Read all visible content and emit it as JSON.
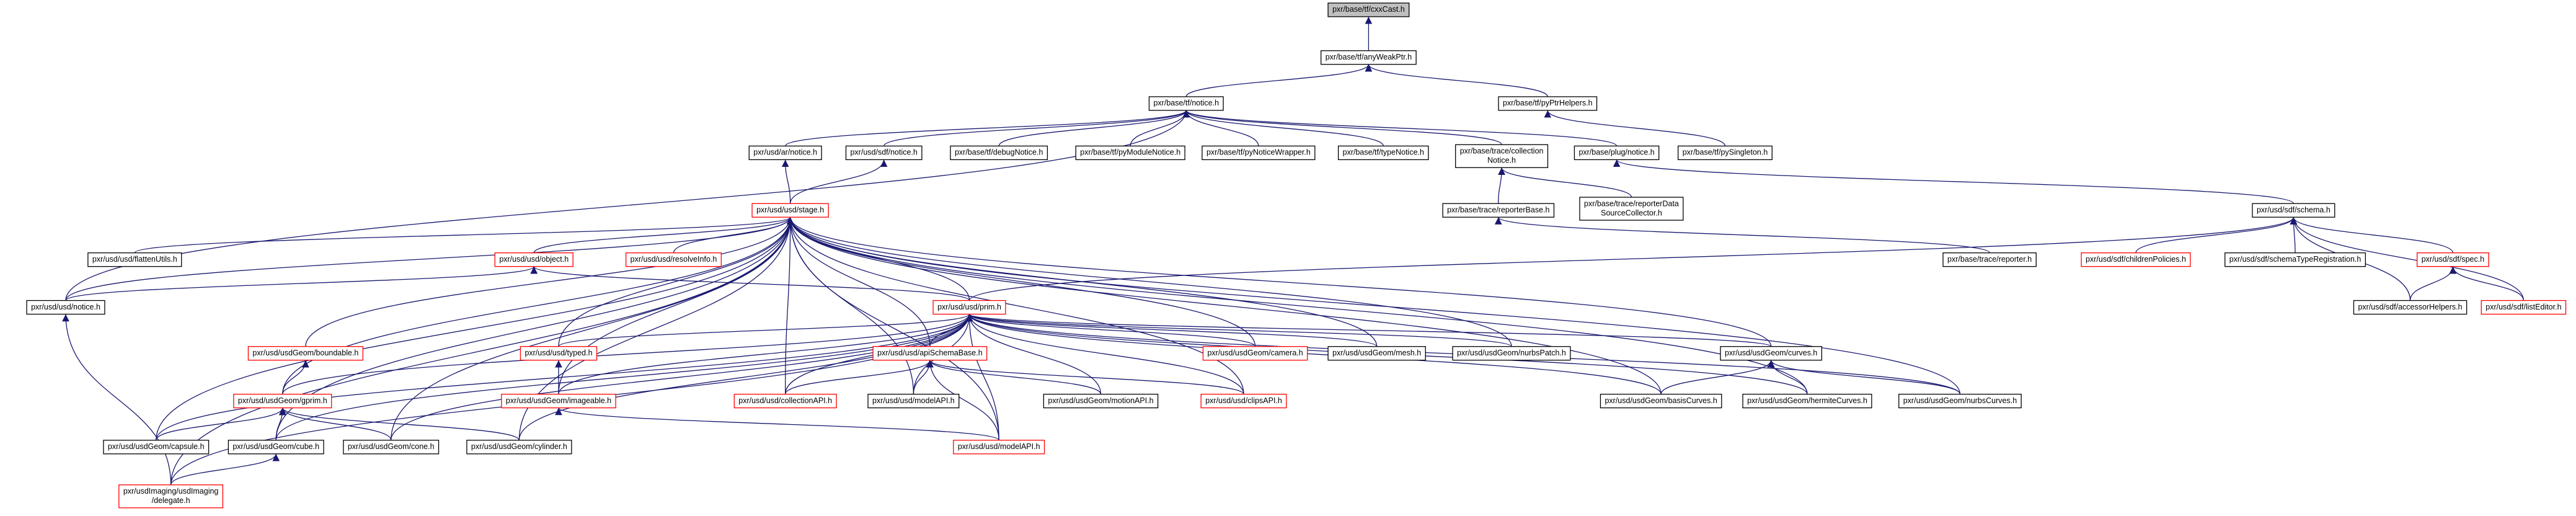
{
  "nodes": [
    {
      "label": [
        "pxr/base/tf/cxxCast.h"
      ],
      "fill": "#bfbfbf"
    },
    {
      "label": [
        "pxr/base/tf/anyWeakPtr.h"
      ]
    },
    {
      "label": [
        "pxr/base/tf/notice.h"
      ]
    },
    {
      "label": [
        "pxr/base/tf/pyPtrHelpers.h"
      ]
    },
    {
      "label": [
        "pxr/usd/ar/notice.h"
      ]
    },
    {
      "label": [
        "pxr/usd/sdf/notice.h"
      ]
    },
    {
      "label": [
        "pxr/base/tf/debugNotice.h"
      ]
    },
    {
      "label": [
        "pxr/base/tf/pyModuleNotice.h"
      ]
    },
    {
      "label": [
        "pxr/base/tf/pyNoticeWrapper.h"
      ]
    },
    {
      "label": [
        "pxr/base/tf/typeNotice.h"
      ]
    },
    {
      "label": [
        "pxr/base/trace/collection",
        "Notice.h"
      ]
    },
    {
      "label": [
        "pxr/base/plug/notice.h"
      ]
    },
    {
      "label": [
        "pxr/base/tf/pySingleton.h"
      ]
    },
    {
      "label": [
        "pxr/usd/usd/stage.h"
      ],
      "border": "#ff0000"
    },
    {
      "label": [
        "pxr/base/trace/reporterBase.h"
      ]
    },
    {
      "label": [
        "pxr/base/trace/reporterData",
        "SourceCollector.h"
      ]
    },
    {
      "label": [
        "pxr/usd/sdf/schema.h"
      ]
    },
    {
      "label": [
        "pxr/usd/usd/flattenUtils.h"
      ]
    },
    {
      "label": [
        "pxr/usd/usd/object.h"
      ],
      "border": "#ff0000"
    },
    {
      "label": [
        "pxr/usd/usd/resolveInfo.h"
      ],
      "border": "#ff0000"
    },
    {
      "label": [
        "pxr/base/trace/reporter.h"
      ]
    },
    {
      "label": [
        "pxr/usd/sdf/childrenPolicies.h"
      ],
      "border": "#ff0000"
    },
    {
      "label": [
        "pxr/usd/sdf/schemaTypeRegistration.h"
      ]
    },
    {
      "label": [
        "pxr/usd/sdf/spec.h"
      ],
      "border": "#ff0000"
    },
    {
      "label": [
        "pxr/usd/usd/notice.h"
      ]
    },
    {
      "label": [
        "pxr/usd/usd/prim.h"
      ],
      "border": "#ff0000"
    },
    {
      "label": [
        "pxr/usd/usdGeom/boundable.h"
      ],
      "border": "#ff0000"
    },
    {
      "label": [
        "pxr/usd/usd/typed.h"
      ],
      "border": "#ff0000"
    },
    {
      "label": [
        "pxr/usd/usd/apiSchemaBase.h"
      ],
      "border": "#ff0000"
    },
    {
      "label": [
        "pxr/usd/usdGeom/camera.h"
      ],
      "border": "#ff0000"
    },
    {
      "label": [
        "pxr/usd/usdGeom/mesh.h"
      ]
    },
    {
      "label": [
        "pxr/usd/usdGeom/nurbsPatch.h"
      ]
    },
    {
      "label": [
        "pxr/usd/usdGeom/curves.h"
      ]
    },
    {
      "label": [
        "pxr/usd/sdf/accessorHelpers.h"
      ]
    },
    {
      "label": [
        "pxr/usd/sdf/listEditor.h"
      ],
      "border": "#ff0000"
    },
    {
      "label": [
        "pxr/usd/usdGeom/gprim.h"
      ],
      "border": "#ff0000"
    },
    {
      "label": [
        "pxr/usd/usdGeom/imageable.h"
      ],
      "border": "#ff0000"
    },
    {
      "label": [
        "pxr/usd/usd/collectionAPI.h"
      ],
      "border": "#ff0000"
    },
    {
      "label": [
        "pxr/usd/usd/modelAPI.h"
      ]
    },
    {
      "label": [
        "pxr/usd/usdGeom/motionAPI.h"
      ]
    },
    {
      "label": [
        "pxr/usd/usd/clipsAPI.h"
      ],
      "border": "#ff0000"
    },
    {
      "label": [
        "pxr/usd/usdGeom/basisCurves.h"
      ]
    },
    {
      "label": [
        "pxr/usd/usdGeom/hermiteCurves.h"
      ]
    },
    {
      "label": [
        "pxr/usd/usdGeom/nurbsCurves.h"
      ]
    },
    {
      "label": [
        "pxr/usd/usdGeom/capsule.h"
      ]
    },
    {
      "label": [
        "pxr/usd/usdGeom/cube.h"
      ]
    },
    {
      "label": [
        "pxr/usd/usdGeom/cone.h"
      ]
    },
    {
      "label": [
        "pxr/usd/usdGeom/cylinder.h"
      ]
    },
    {
      "label": [
        "pxr/usd/usd/modelAPI.h"
      ],
      "border": "#ff0000"
    },
    {
      "label": [
        "pxr/usdImaging/usdImaging",
        "/delegate.h"
      ],
      "border": "#ff0000"
    }
  ]
}
